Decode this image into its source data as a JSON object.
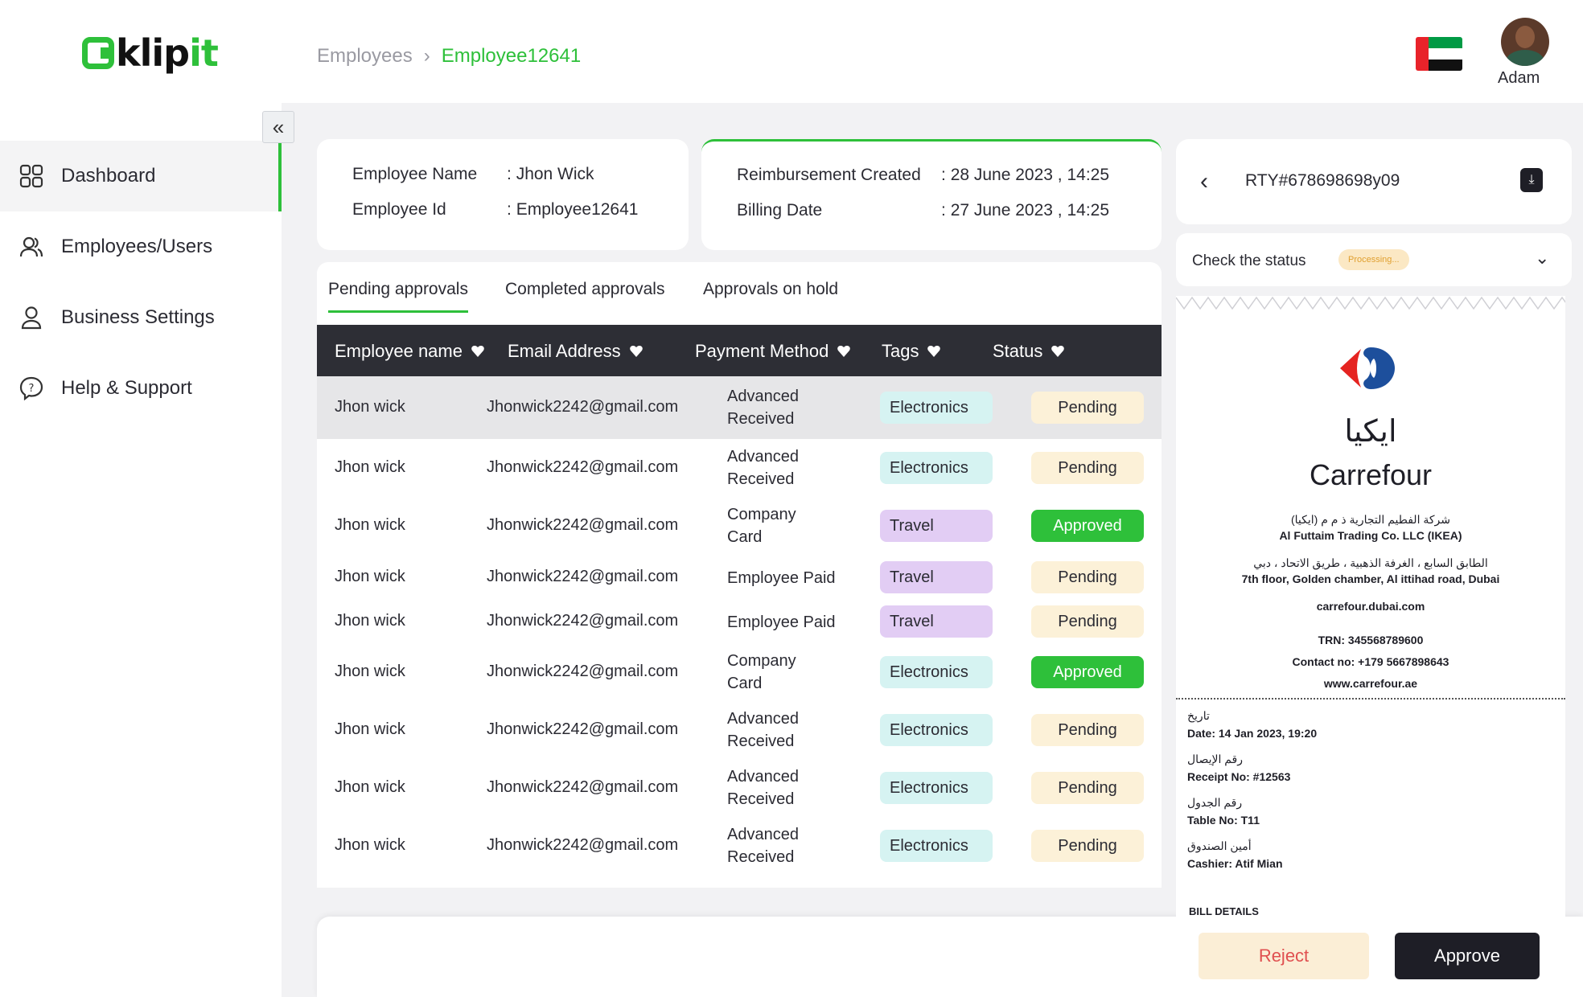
{
  "app": {
    "logo_prefix": "kl",
    "logo_i": "i",
    "logo_p": "p",
    "logo_it": "it"
  },
  "sidebar": {
    "items": [
      {
        "label": "Dashboard",
        "icon": "grid-icon"
      },
      {
        "label": "Employees/Users",
        "icon": "users-icon"
      },
      {
        "label": "Business Settings",
        "icon": "user-icon"
      },
      {
        "label": "Help & Support",
        "icon": "help-icon"
      }
    ]
  },
  "header": {
    "breadcrumb": [
      "Employees",
      "Employee12641"
    ],
    "user_name": "Adam",
    "flag": "uae-flag"
  },
  "employee_card": {
    "name_label": "Employee Name",
    "name_sep": ":",
    "name_value": "Jhon Wick",
    "id_label": "Employee Id",
    "id_sep": ":",
    "id_value": "Employee12641"
  },
  "reimbursement_card": {
    "created_label": "Reimbursement Created",
    "created_sep": ":",
    "created_value": "28 June 2023 , 14:25",
    "billing_label": "Billing Date",
    "billing_sep": ":",
    "billing_value": "27 June 2023 , 14:25"
  },
  "tabs": [
    "Pending approvals",
    "Completed approvals",
    "Approvals on hold"
  ],
  "table": {
    "columns": [
      "Employee name",
      "Email Address",
      "Payment Method",
      "Tags",
      "Status"
    ],
    "rows": [
      {
        "name": "Jhon wick",
        "email": "Jhonwick2242@gmail.com",
        "pm1": "Advanced",
        "pm2": "Received",
        "tag": "Electronics",
        "status": "Pending"
      },
      {
        "name": "Jhon wick",
        "email": "Jhonwick2242@gmail.com",
        "pm1": "Advanced",
        "pm2": "Received",
        "tag": "Electronics",
        "status": "Pending"
      },
      {
        "name": "Jhon wick",
        "email": "Jhonwick2242@gmail.com",
        "pm1": "Company",
        "pm2": "Card",
        "tag": "Travel",
        "status": "Approved"
      },
      {
        "name": "Jhon wick",
        "email": "Jhonwick2242@gmail.com",
        "pm1": "Employee Paid",
        "pm2": "",
        "tag": "Travel",
        "status": "Pending"
      },
      {
        "name": "Jhon wick",
        "email": "Jhonwick2242@gmail.com",
        "pm1": "Employee Paid",
        "pm2": "",
        "tag": "Travel",
        "status": "Pending"
      },
      {
        "name": "Jhon wick",
        "email": "Jhonwick2242@gmail.com",
        "pm1": "Company",
        "pm2": "Card",
        "tag": "Electronics",
        "status": "Approved"
      },
      {
        "name": "Jhon wick",
        "email": "Jhonwick2242@gmail.com",
        "pm1": "Advanced",
        "pm2": "Received",
        "tag": "Electronics",
        "status": "Pending"
      },
      {
        "name": "Jhon wick",
        "email": "Jhonwick2242@gmail.com",
        "pm1": "Advanced",
        "pm2": "Received",
        "tag": "Electronics",
        "status": "Pending"
      },
      {
        "name": "Jhon wick",
        "email": "Jhonwick2242@gmail.com",
        "pm1": "Advanced",
        "pm2": "Received",
        "tag": "Electronics",
        "status": "Pending"
      }
    ]
  },
  "actions": {
    "reject": "Reject",
    "approve": "Approve"
  },
  "receipt_panel": {
    "id": "RTY#678698698y09",
    "status_label": "Check the status",
    "status_badge": "Processing...",
    "store_ar": "ايكيا",
    "store_en": "Carrefour",
    "company_ar": "شركة الفطيم التجارية ذ م م (ايكيا)",
    "company_en": "Al Futtaim Trading Co. LLC (IKEA)",
    "address_ar": "الطابق السابع ، الغرفة الذهبية ، طريق الاتحاد ، دبي",
    "address_en": "7th floor, Golden chamber, Al ittihad road, Dubai",
    "site": "carrefour.dubai.com",
    "trn": "TRN: 345568789600",
    "contact": "Contact no:  +179 5667898643",
    "web": "www.carrefour.ae",
    "date_ar": "تاريخ",
    "date": "Date: 14 Jan 2023, 19:20",
    "receipt_ar": "رقم الإيصال",
    "receipt_no": "Receipt No: #12563",
    "table_ar": "رقم الجدول",
    "table_no": "Table No: T11",
    "cashier_ar": "أمين الصندوق",
    "cashier": "Cashier: Atif Mian",
    "bill_details": "BILL DETAILS"
  },
  "colors": {
    "accent": "#2ec03a",
    "dark": "#2d2e35",
    "pending_bg": "#fcf1d8",
    "electronics_bg": "#d6f3f2",
    "travel_bg": "#e2cdf4"
  }
}
